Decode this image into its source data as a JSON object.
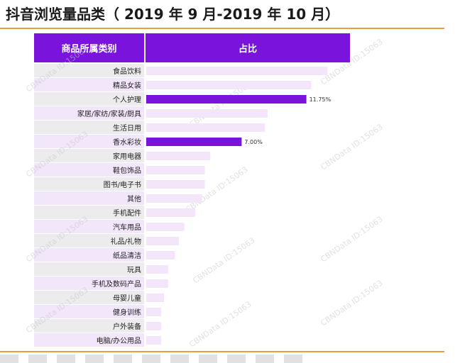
{
  "title": "抖音浏览量品类（ 2019 年 9 月-2019 年 10 月）",
  "header": {
    "left": "商品所属类别",
    "right": "占比"
  },
  "watermark": "CBNData ID:15063",
  "colors": {
    "header": "#7a14dd",
    "bar_light": "#f3e6fb",
    "bar_highlight": "#7a14dd",
    "row_shade": "#f2e6fb",
    "rule": "#e6a03c"
  },
  "chart_data": {
    "type": "bar",
    "orientation": "horizontal",
    "title": "抖音浏览量品类（ 2019 年 9 月-2019 年 10 月）",
    "xlabel": "",
    "ylabel": "",
    "xlim": [
      0,
      15
    ],
    "categories": [
      "食品饮料",
      "精品女装",
      "个人护理",
      "家居/家纺/家装/厨具",
      "生活日用",
      "香水彩妆",
      "家用电器",
      "鞋包饰品",
      "图书/电子书",
      "其他",
      "手机配件",
      "汽车用品",
      "礼品/礼物",
      "纸品清洁",
      "玩具",
      "手机及数码产品",
      "母婴儿童",
      "健身训练",
      "户外装备",
      "电脑/办公用品"
    ],
    "values": [
      13.3,
      12.1,
      11.75,
      8.9,
      8.7,
      7.0,
      4.7,
      4.3,
      4.3,
      4.1,
      3.6,
      2.8,
      2.4,
      2.1,
      1.6,
      1.6,
      1.3,
      1.1,
      1.1,
      1.1
    ],
    "highlighted": [
      2,
      5
    ],
    "data_labels": {
      "2": "11.75%",
      "5": "7.00%"
    }
  }
}
